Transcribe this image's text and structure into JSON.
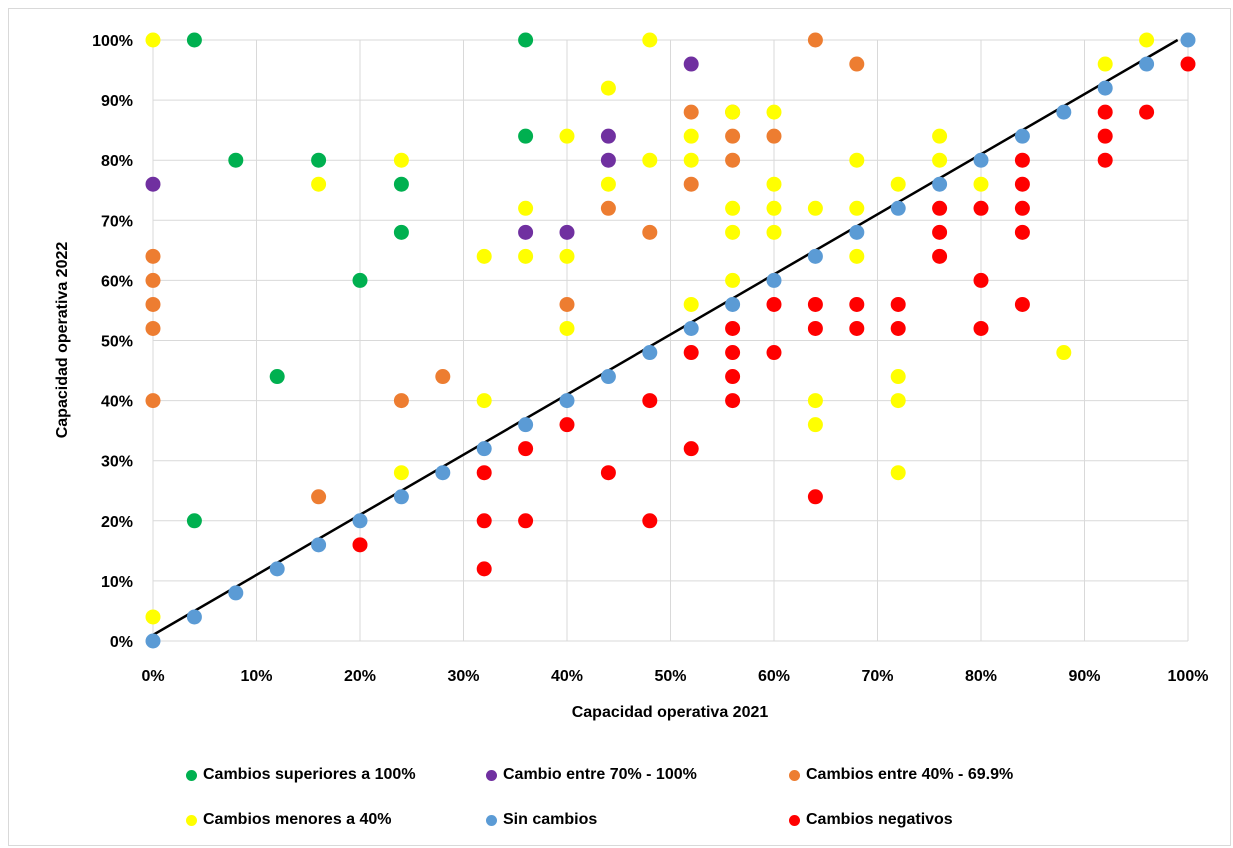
{
  "chart_data": {
    "type": "scatter",
    "title": "",
    "xlabel": "Capacidad operativa 2021",
    "ylabel": "Capacidad operativa 2022",
    "xlim": [
      0,
      1
    ],
    "ylim": [
      0,
      1
    ],
    "x_ticks": [
      "0%",
      "10%",
      "20%",
      "30%",
      "40%",
      "50%",
      "60%",
      "70%",
      "80%",
      "90%",
      "100%"
    ],
    "y_ticks": [
      "0%",
      "10%",
      "20%",
      "30%",
      "40%",
      "50%",
      "60%",
      "70%",
      "80%",
      "90%",
      "100%"
    ],
    "grid": true,
    "legend_position": "bottom",
    "trend_line": {
      "x": [
        0.0,
        0.99
      ],
      "y": [
        0.01,
        1.0
      ],
      "color": "#000000"
    },
    "series": [
      {
        "name": "Cambios superiores a 100%",
        "color": "#00b050",
        "points": [
          [
            0.04,
            1.0
          ],
          [
            0.36,
            1.0
          ],
          [
            0.36,
            0.84
          ],
          [
            0.08,
            0.8
          ],
          [
            0.16,
            0.8
          ],
          [
            0.24,
            0.76
          ],
          [
            0.24,
            0.68
          ],
          [
            0.2,
            0.6
          ],
          [
            0.12,
            0.44
          ],
          [
            0.04,
            0.2
          ]
        ]
      },
      {
        "name": "Cambio entre 70% - 100%",
        "color": "#7030a0",
        "points": [
          [
            0.52,
            0.96
          ],
          [
            0.44,
            0.84
          ],
          [
            0.44,
            0.8
          ],
          [
            0.0,
            0.76
          ],
          [
            0.36,
            0.68
          ],
          [
            0.4,
            0.68
          ]
        ]
      },
      {
        "name": "Cambios entre 40% - 69.9%",
        "color": "#ed7d31",
        "points": [
          [
            0.64,
            1.0
          ],
          [
            0.68,
            0.96
          ],
          [
            0.52,
            0.88
          ],
          [
            0.56,
            0.88
          ],
          [
            0.56,
            0.84
          ],
          [
            0.6,
            0.84
          ],
          [
            0.56,
            0.8
          ],
          [
            0.52,
            0.76
          ],
          [
            0.44,
            0.72
          ],
          [
            0.48,
            0.68
          ],
          [
            0.0,
            0.64
          ],
          [
            0.0,
            0.6
          ],
          [
            0.0,
            0.56
          ],
          [
            0.4,
            0.56
          ],
          [
            0.0,
            0.52
          ],
          [
            0.28,
            0.44
          ],
          [
            0.0,
            0.4
          ],
          [
            0.24,
            0.4
          ],
          [
            0.16,
            0.24
          ]
        ]
      },
      {
        "name": "Cambios menores a 40%",
        "color": "#ffff00",
        "points": [
          [
            0.0,
            1.0
          ],
          [
            0.48,
            1.0
          ],
          [
            0.96,
            1.0
          ],
          [
            0.92,
            0.96
          ],
          [
            0.44,
            0.92
          ],
          [
            0.56,
            0.88
          ],
          [
            0.6,
            0.88
          ],
          [
            0.4,
            0.84
          ],
          [
            0.52,
            0.84
          ],
          [
            0.76,
            0.84
          ],
          [
            0.24,
            0.8
          ],
          [
            0.48,
            0.8
          ],
          [
            0.52,
            0.8
          ],
          [
            0.68,
            0.8
          ],
          [
            0.76,
            0.8
          ],
          [
            0.16,
            0.76
          ],
          [
            0.44,
            0.76
          ],
          [
            0.6,
            0.76
          ],
          [
            0.72,
            0.76
          ],
          [
            0.8,
            0.76
          ],
          [
            0.36,
            0.72
          ],
          [
            0.56,
            0.72
          ],
          [
            0.6,
            0.72
          ],
          [
            0.64,
            0.72
          ],
          [
            0.68,
            0.72
          ],
          [
            0.56,
            0.68
          ],
          [
            0.6,
            0.68
          ],
          [
            0.32,
            0.64
          ],
          [
            0.36,
            0.64
          ],
          [
            0.4,
            0.64
          ],
          [
            0.68,
            0.64
          ],
          [
            0.56,
            0.6
          ],
          [
            0.52,
            0.56
          ],
          [
            0.4,
            0.52
          ],
          [
            0.88,
            0.48
          ],
          [
            0.72,
            0.44
          ],
          [
            0.32,
            0.4
          ],
          [
            0.64,
            0.4
          ],
          [
            0.72,
            0.4
          ],
          [
            0.64,
            0.36
          ],
          [
            0.24,
            0.28
          ],
          [
            0.72,
            0.28
          ],
          [
            0.0,
            0.04
          ]
        ]
      },
      {
        "name": "Sin cambios",
        "color": "#5b9bd5",
        "points": [
          [
            0.0,
            0.0
          ],
          [
            0.04,
            0.04
          ],
          [
            0.08,
            0.08
          ],
          [
            0.12,
            0.12
          ],
          [
            0.16,
            0.16
          ],
          [
            0.2,
            0.2
          ],
          [
            0.24,
            0.24
          ],
          [
            0.28,
            0.28
          ],
          [
            0.32,
            0.32
          ],
          [
            0.36,
            0.36
          ],
          [
            0.4,
            0.4
          ],
          [
            0.44,
            0.44
          ],
          [
            0.48,
            0.48
          ],
          [
            0.52,
            0.52
          ],
          [
            0.56,
            0.56
          ],
          [
            0.6,
            0.6
          ],
          [
            0.64,
            0.64
          ],
          [
            0.68,
            0.68
          ],
          [
            0.72,
            0.72
          ],
          [
            0.76,
            0.76
          ],
          [
            0.8,
            0.8
          ],
          [
            0.84,
            0.84
          ],
          [
            0.88,
            0.88
          ],
          [
            0.92,
            0.92
          ],
          [
            0.96,
            0.96
          ],
          [
            1.0,
            1.0
          ]
        ]
      },
      {
        "name": "Cambios negativos",
        "color": "#ff0000",
        "points": [
          [
            1.0,
            0.96
          ],
          [
            0.92,
            0.88
          ],
          [
            0.96,
            0.88
          ],
          [
            0.92,
            0.84
          ],
          [
            0.84,
            0.8
          ],
          [
            0.92,
            0.8
          ],
          [
            0.84,
            0.76
          ],
          [
            0.76,
            0.72
          ],
          [
            0.8,
            0.72
          ],
          [
            0.84,
            0.72
          ],
          [
            0.76,
            0.68
          ],
          [
            0.84,
            0.68
          ],
          [
            0.76,
            0.64
          ],
          [
            0.8,
            0.6
          ],
          [
            0.6,
            0.56
          ],
          [
            0.64,
            0.56
          ],
          [
            0.68,
            0.56
          ],
          [
            0.72,
            0.56
          ],
          [
            0.84,
            0.56
          ],
          [
            0.56,
            0.52
          ],
          [
            0.64,
            0.52
          ],
          [
            0.68,
            0.52
          ],
          [
            0.72,
            0.52
          ],
          [
            0.8,
            0.52
          ],
          [
            0.52,
            0.48
          ],
          [
            0.56,
            0.48
          ],
          [
            0.6,
            0.48
          ],
          [
            0.56,
            0.44
          ],
          [
            0.48,
            0.4
          ],
          [
            0.56,
            0.4
          ],
          [
            0.4,
            0.36
          ],
          [
            0.36,
            0.32
          ],
          [
            0.52,
            0.32
          ],
          [
            0.32,
            0.28
          ],
          [
            0.44,
            0.28
          ],
          [
            0.64,
            0.24
          ],
          [
            0.32,
            0.2
          ],
          [
            0.36,
            0.2
          ],
          [
            0.48,
            0.2
          ],
          [
            0.2,
            0.16
          ],
          [
            0.32,
            0.12
          ]
        ]
      }
    ]
  }
}
